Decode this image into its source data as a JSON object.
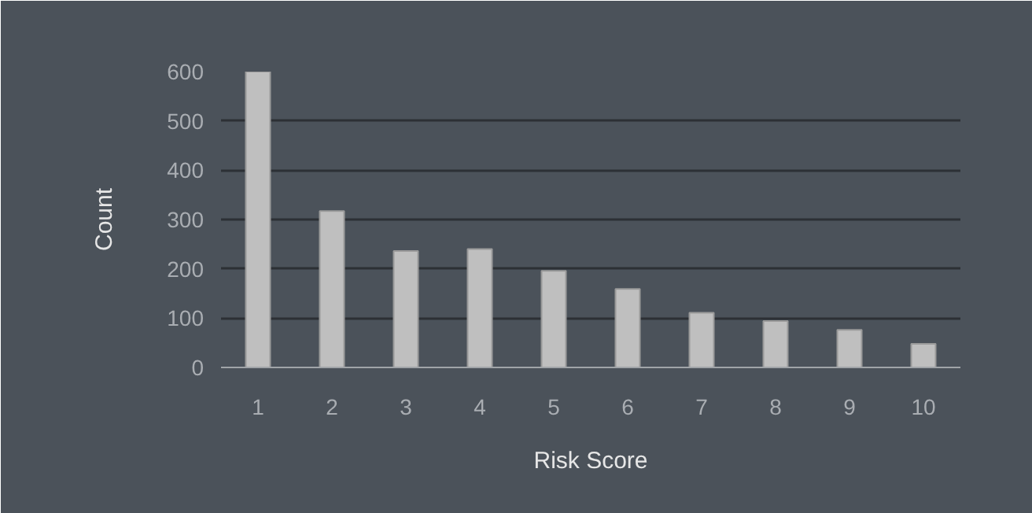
{
  "chart_data": {
    "type": "bar",
    "xlabel": "Risk Score",
    "ylabel": "Count",
    "categories": [
      "1",
      "2",
      "3",
      "4",
      "5",
      "6",
      "7",
      "8",
      "9",
      "10"
    ],
    "values": [
      600,
      317,
      236,
      240,
      196,
      159,
      111,
      94,
      76,
      48
    ],
    "color": "#bfbfbf",
    "ylim": [
      0,
      600
    ],
    "yticks": [
      0,
      100,
      200,
      300,
      400,
      500,
      600
    ],
    "grid": "y"
  }
}
